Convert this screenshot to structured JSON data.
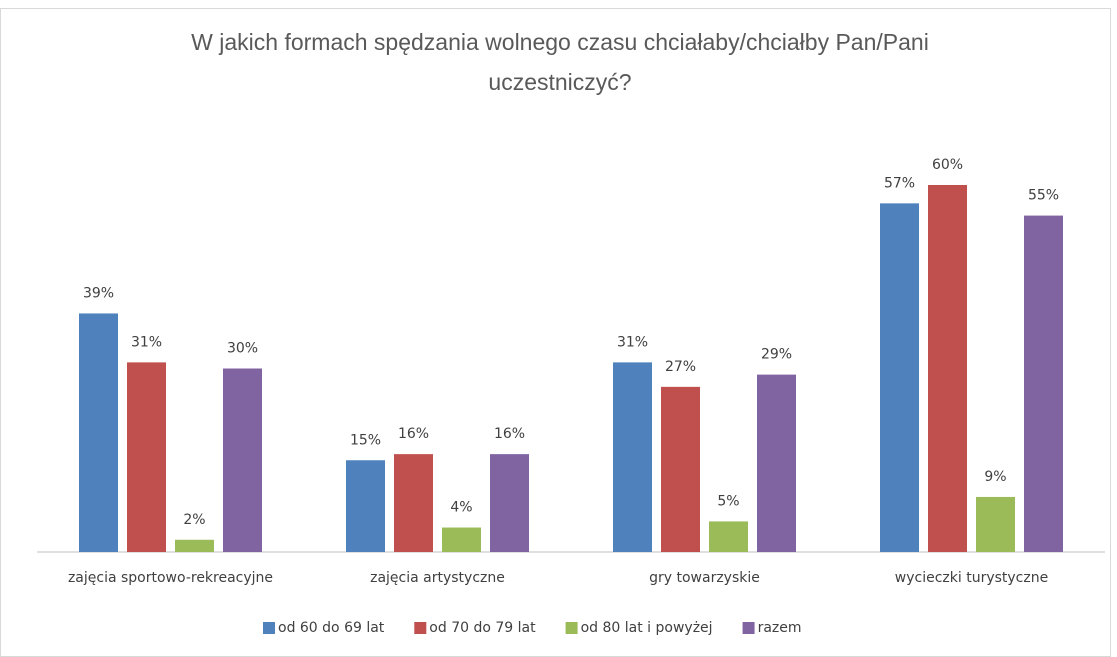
{
  "chart_data": {
    "type": "bar",
    "title": "W jakich formach spędzania wolnego czasu chciałaby/chciałby Pan/Pani uczestniczyć?",
    "categories": [
      "zajęcia sportowo-rekreacyjne",
      "zajęcia artystyczne",
      "gry towarzyskie",
      "wycieczki turystyczne"
    ],
    "series": [
      {
        "name": "od 60 do 69 lat",
        "color": "#4f81bd",
        "values": [
          39,
          15,
          31,
          57
        ],
        "value_labels": [
          "39%",
          "15%",
          "31%",
          "57%"
        ]
      },
      {
        "name": "od 70 do 79 lat",
        "color": "#c0504d",
        "values": [
          31,
          16,
          27,
          60
        ],
        "value_labels": [
          "31%",
          "16%",
          "27%",
          "60%"
        ]
      },
      {
        "name": "od 80 lat i powyżej",
        "color": "#9bbb59",
        "values": [
          2,
          4,
          5,
          9
        ],
        "value_labels": [
          "2%",
          "4%",
          "5%",
          "9%"
        ]
      },
      {
        "name": "razem",
        "color": "#8064a2",
        "values": [
          30,
          16,
          29,
          55
        ],
        "value_labels": [
          "30%",
          "16%",
          "29%",
          "55%"
        ]
      }
    ],
    "legend": "bottom"
  }
}
